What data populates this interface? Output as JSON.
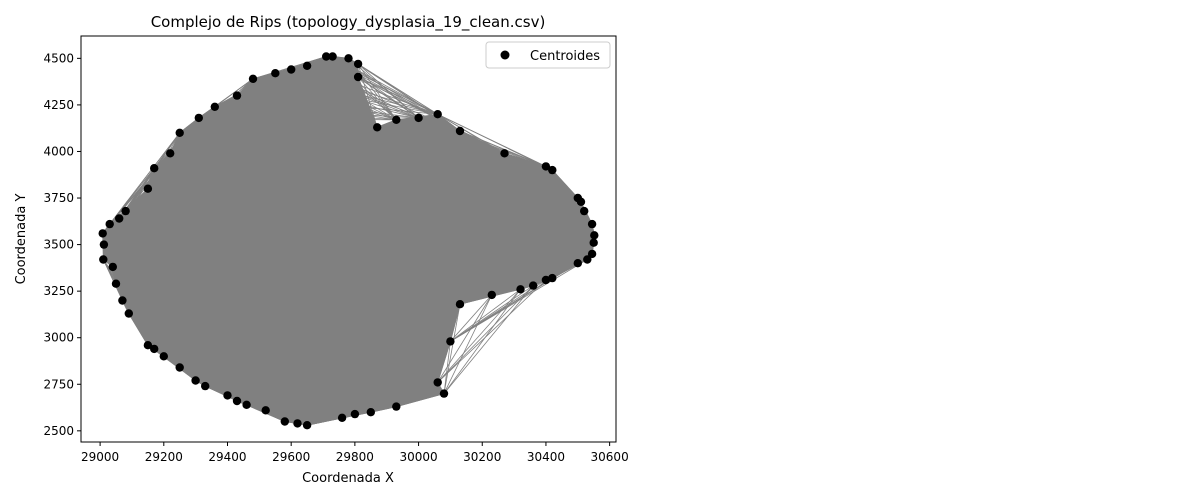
{
  "chart_data": {
    "type": "scatter",
    "title": "Complejo de Rips (topology_dysplasia_19_clean.csv)",
    "xlabel": "Coordenada X",
    "ylabel": "Coordenada Y",
    "xlim": [
      28940,
      30620
    ],
    "ylim": [
      2440,
      4620
    ],
    "xticks": [
      29000,
      29200,
      29400,
      29600,
      29800,
      30000,
      30200,
      30400,
      30600
    ],
    "yticks": [
      2500,
      2750,
      3000,
      3250,
      3500,
      3750,
      4000,
      4250,
      4500
    ],
    "grid": false,
    "legend": {
      "position": "top-right",
      "entries": [
        "Centroides"
      ]
    },
    "colors": {
      "points": "#000000",
      "edges": "#808080"
    },
    "series": [
      {
        "name": "Centroides",
        "points": [
          [
            29010,
            3420
          ],
          [
            29012,
            3500
          ],
          [
            29008,
            3560
          ],
          [
            29030,
            3610
          ],
          [
            29060,
            3640
          ],
          [
            29040,
            3380
          ],
          [
            29050,
            3290
          ],
          [
            29070,
            3200
          ],
          [
            29090,
            3130
          ],
          [
            29150,
            2960
          ],
          [
            29170,
            2940
          ],
          [
            29200,
            2900
          ],
          [
            29250,
            2840
          ],
          [
            29300,
            2770
          ],
          [
            29330,
            2740
          ],
          [
            29400,
            2690
          ],
          [
            29430,
            2660
          ],
          [
            29460,
            2640
          ],
          [
            29520,
            2610
          ],
          [
            29580,
            2550
          ],
          [
            29620,
            2540
          ],
          [
            29650,
            2530
          ],
          [
            29760,
            2570
          ],
          [
            29800,
            2590
          ],
          [
            29850,
            2600
          ],
          [
            29930,
            2630
          ],
          [
            30060,
            2760
          ],
          [
            30080,
            2700
          ],
          [
            30100,
            2980
          ],
          [
            30130,
            3180
          ],
          [
            30230,
            3230
          ],
          [
            30320,
            3260
          ],
          [
            30360,
            3280
          ],
          [
            30400,
            3310
          ],
          [
            30420,
            3320
          ],
          [
            30500,
            3400
          ],
          [
            30530,
            3420
          ],
          [
            30545,
            3450
          ],
          [
            30550,
            3510
          ],
          [
            30552,
            3550
          ],
          [
            30545,
            3610
          ],
          [
            30520,
            3680
          ],
          [
            30510,
            3730
          ],
          [
            30500,
            3750
          ],
          [
            30420,
            3900
          ],
          [
            30400,
            3920
          ],
          [
            30270,
            3990
          ],
          [
            30130,
            4110
          ],
          [
            30060,
            4200
          ],
          [
            30000,
            4180
          ],
          [
            29930,
            4170
          ],
          [
            29870,
            4130
          ],
          [
            29810,
            4400
          ],
          [
            29810,
            4470
          ],
          [
            29780,
            4500
          ],
          [
            29730,
            4510
          ],
          [
            29710,
            4510
          ],
          [
            29650,
            4460
          ],
          [
            29600,
            4440
          ],
          [
            29550,
            4420
          ],
          [
            29480,
            4390
          ],
          [
            29430,
            4300
          ],
          [
            29360,
            4240
          ],
          [
            29310,
            4180
          ],
          [
            29250,
            4100
          ],
          [
            29220,
            3990
          ],
          [
            29170,
            3910
          ],
          [
            29150,
            3800
          ],
          [
            29080,
            3680
          ]
        ]
      }
    ]
  }
}
